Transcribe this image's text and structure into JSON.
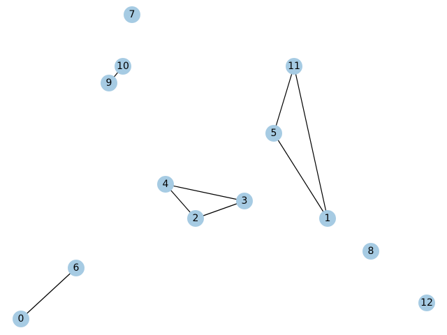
{
  "graph": {
    "node_color": "#a6cbe3",
    "edge_color": "#000000",
    "nodes": [
      {
        "id": "0",
        "label": "0"
      },
      {
        "id": "1",
        "label": "1"
      },
      {
        "id": "2",
        "label": "2"
      },
      {
        "id": "3",
        "label": "3"
      },
      {
        "id": "4",
        "label": "4"
      },
      {
        "id": "5",
        "label": "5"
      },
      {
        "id": "6",
        "label": "6"
      },
      {
        "id": "7",
        "label": "7"
      },
      {
        "id": "8",
        "label": "8"
      },
      {
        "id": "9",
        "label": "9"
      },
      {
        "id": "10",
        "label": "10"
      },
      {
        "id": "11",
        "label": "11"
      },
      {
        "id": "12",
        "label": "12"
      }
    ],
    "edges": [
      {
        "source": "0",
        "target": "6"
      },
      {
        "source": "9",
        "target": "10"
      },
      {
        "source": "11",
        "target": "5"
      },
      {
        "source": "11",
        "target": "1"
      },
      {
        "source": "5",
        "target": "1"
      },
      {
        "source": "4",
        "target": "3"
      },
      {
        "source": "4",
        "target": "2"
      },
      {
        "source": "2",
        "target": "3"
      }
    ]
  }
}
